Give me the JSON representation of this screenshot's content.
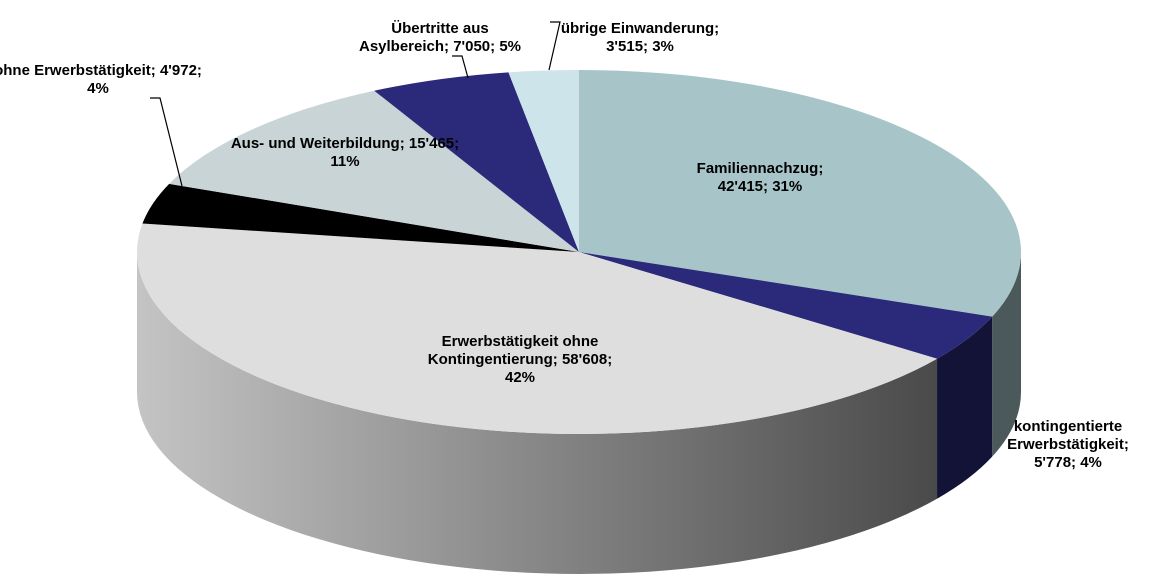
{
  "chart_data": {
    "type": "pie3d",
    "categories": [
      "Familiennachzug",
      "kontingentierte Erwerbstätigkeit",
      "Erwerbstätigkeit ohne Kontingentierung",
      "ohne Erwerbstätigkeit",
      "Aus- und Weiterbildung",
      "Übertritte aus Asylbereich",
      "übrige Einwanderung"
    ],
    "values": [
      42415,
      5778,
      58608,
      4972,
      15465,
      7050,
      3515
    ],
    "value_labels": [
      "42'415",
      "5'778",
      "58'608",
      "4'972",
      "15'465",
      "7'050",
      "3'515"
    ],
    "percents": [
      31,
      4,
      42,
      4,
      11,
      5,
      3
    ],
    "percent_labels": [
      "31%",
      "4%",
      "42%",
      "4%",
      "11%",
      "5%",
      "3%"
    ],
    "separator": ";",
    "colors": [
      "#a7c5c8",
      "#2b2a7a",
      "#dedede",
      "#000000",
      "#c8d4d6",
      "#2b2a7a",
      "#cde4ea"
    ]
  }
}
